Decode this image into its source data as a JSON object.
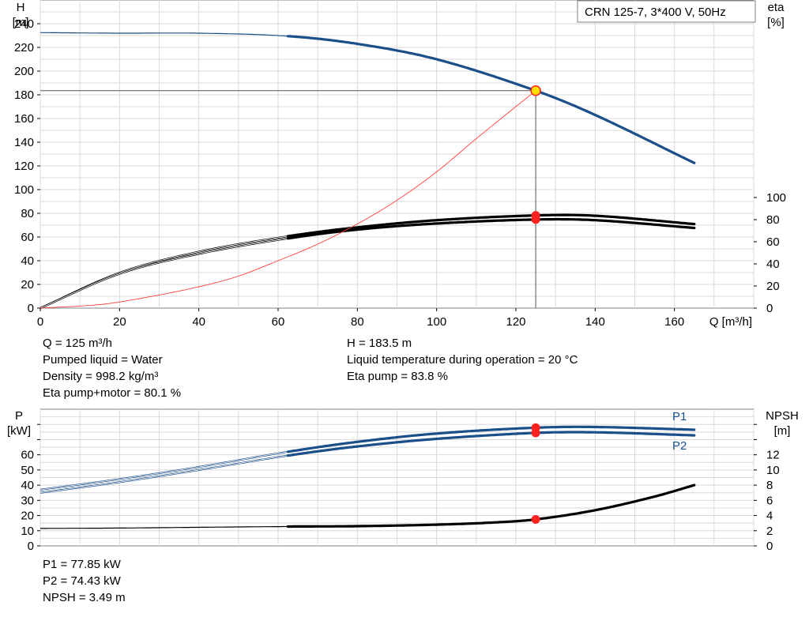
{
  "chart_data": [
    {
      "type": "line",
      "title": "CRN 125-7, 3*400 V, 50Hz",
      "xlabel": "Q [m³/h]",
      "ylabel_left": "H\n[m]",
      "ylabel_right": "eta\n[%]",
      "xlim": [
        0,
        180
      ],
      "ylim": [
        0,
        260
      ],
      "y2lim": [
        0,
        100
      ],
      "x_ticks": [
        "0",
        "20",
        "40",
        "60",
        "80",
        "100",
        "120",
        "140",
        "160"
      ],
      "y_ticks": [
        "0",
        "20",
        "40",
        "60",
        "80",
        "100",
        "120",
        "140",
        "160",
        "180",
        "200",
        "220",
        "240"
      ],
      "y2_ticks": [
        "0",
        "20",
        "40",
        "60",
        "80",
        "100"
      ],
      "grid": true,
      "series": [
        {
          "key": "H",
          "axis": "left",
          "color": "#1b4f8a",
          "x": [
            0,
            20,
            40,
            62.5,
            80,
            100,
            125,
            140,
            165
          ],
          "y": [
            232.5,
            232,
            232,
            229.5,
            223,
            210,
            183.5,
            163,
            122.5
          ]
        },
        {
          "key": "eta_pump",
          "axis": "right",
          "color": "#000000",
          "x": [
            0,
            20,
            40,
            62.5,
            80,
            100,
            125,
            140,
            165
          ],
          "y": [
            0,
            32,
            51,
            65,
            73,
            79.5,
            83.8,
            83.5,
            76
          ]
        },
        {
          "key": "eta_total",
          "axis": "right",
          "color": "#000000",
          "x": [
            0,
            20,
            40,
            62.5,
            80,
            100,
            125,
            140,
            165
          ],
          "y": [
            0,
            31,
            49,
            63,
            71,
            76.5,
            80.1,
            79.5,
            72.5
          ]
        },
        {
          "key": "system",
          "axis": "left",
          "color": "#ff4040",
          "x": [
            0,
            15,
            25,
            40,
            50,
            60,
            70,
            80,
            90,
            100,
            110,
            125
          ],
          "y": [
            0,
            3,
            8,
            18,
            27,
            40,
            54,
            71,
            91,
            115,
            143,
            183.5
          ]
        }
      ],
      "duty_point": {
        "x": 125,
        "H": 183.5,
        "eta_pump": 83.8,
        "eta_total": 80.1
      }
    },
    {
      "type": "line",
      "xlabel": "",
      "ylabel_left": "P\n[kW]",
      "ylabel_right": "NPSH\n[m]",
      "xlim": [
        0,
        180
      ],
      "ylim": [
        0,
        90
      ],
      "y2lim": [
        0,
        18
      ],
      "y_ticks": [
        "0",
        "10",
        "20",
        "30",
        "40",
        "50",
        "60"
      ],
      "y2_ticks": [
        "0",
        "2",
        "4",
        "6",
        "8",
        "10",
        "12"
      ],
      "grid": true,
      "series": [
        {
          "name": "P1",
          "key": "P1",
          "axis": "left",
          "color": "#1b4f8a",
          "x": [
            0,
            20,
            40,
            62.5,
            80,
            100,
            125,
            140,
            165
          ],
          "y": [
            37,
            44,
            52,
            62,
            68.5,
            74,
            77.85,
            78.3,
            76.5
          ]
        },
        {
          "name": "P2",
          "key": "P2",
          "axis": "left",
          "color": "#1b4f8a",
          "x": [
            0,
            20,
            40,
            62.5,
            80,
            100,
            125,
            140,
            165
          ],
          "y": [
            35,
            42,
            50,
            59.5,
            65.5,
            70.5,
            74.43,
            74.8,
            72.8
          ]
        },
        {
          "key": "NPSH",
          "axis": "right",
          "color": "#000000",
          "x": [
            0,
            20,
            40,
            62.5,
            80,
            100,
            115,
            125,
            140,
            155,
            165
          ],
          "y": [
            2.3,
            2.35,
            2.45,
            2.55,
            2.6,
            2.8,
            3.1,
            3.49,
            4.7,
            6.5,
            8.0
          ]
        }
      ],
      "duty_point": {
        "x": 125,
        "P1": 77.85,
        "P2": 74.43,
        "NPSH": 3.49
      }
    }
  ],
  "info_upper": {
    "left": [
      "Q = 125 m³/h",
      "Pumped liquid = Water",
      "Density = 998.2 kg/m³",
      "Eta pump+motor = 80.1 %"
    ],
    "right": [
      "H = 183.5 m",
      "Liquid temperature during operation = 20 °C",
      "Eta pump = 83.8 %"
    ]
  },
  "info_lower": [
    "P1 = 77.85 kW",
    "P2 = 74.43 kW",
    "NPSH = 3.49 m"
  ]
}
